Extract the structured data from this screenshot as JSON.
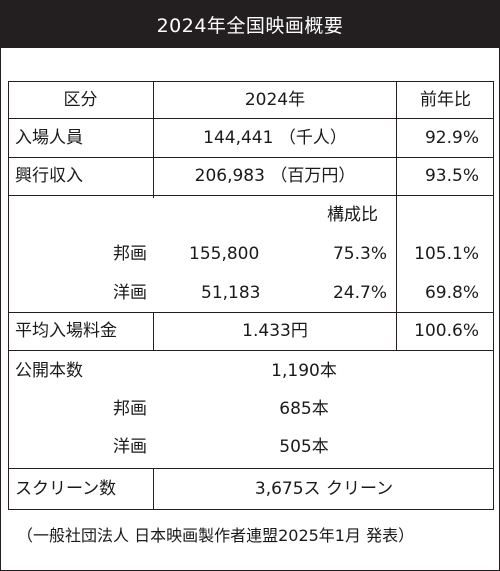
{
  "title": "2024年全国映画概要",
  "header": {
    "category": "区分",
    "year": "2024年",
    "prev_ratio": "前年比"
  },
  "attendance": {
    "label": "入場人員",
    "value": "144,441 （千人）",
    "ratio": "92.9%"
  },
  "box_office": {
    "label": "興行収入",
    "value": "206,983 （百万円）",
    "ratio": "93.5%",
    "share_header": "構成比",
    "japanese": {
      "label": "邦画",
      "value": "155,800",
      "share": "75.3%",
      "ratio": "105.1%"
    },
    "foreign": {
      "label": "洋画",
      "value": "51,183",
      "share": "24.7%",
      "ratio": "69.8%"
    }
  },
  "avg_price": {
    "label": "平均入場料金",
    "value": "1.433円",
    "ratio": "100.6%"
  },
  "releases": {
    "label": "公開本数",
    "value": "1,190本",
    "japanese": {
      "label": "邦画",
      "value": "685本"
    },
    "foreign": {
      "label": "洋画",
      "value": "505本"
    }
  },
  "screens": {
    "label": "スクリーン数",
    "value": "3,675ス クリーン"
  },
  "source": "（一般社団法人 日本映画製作者連盟2025年1月  発表）"
}
